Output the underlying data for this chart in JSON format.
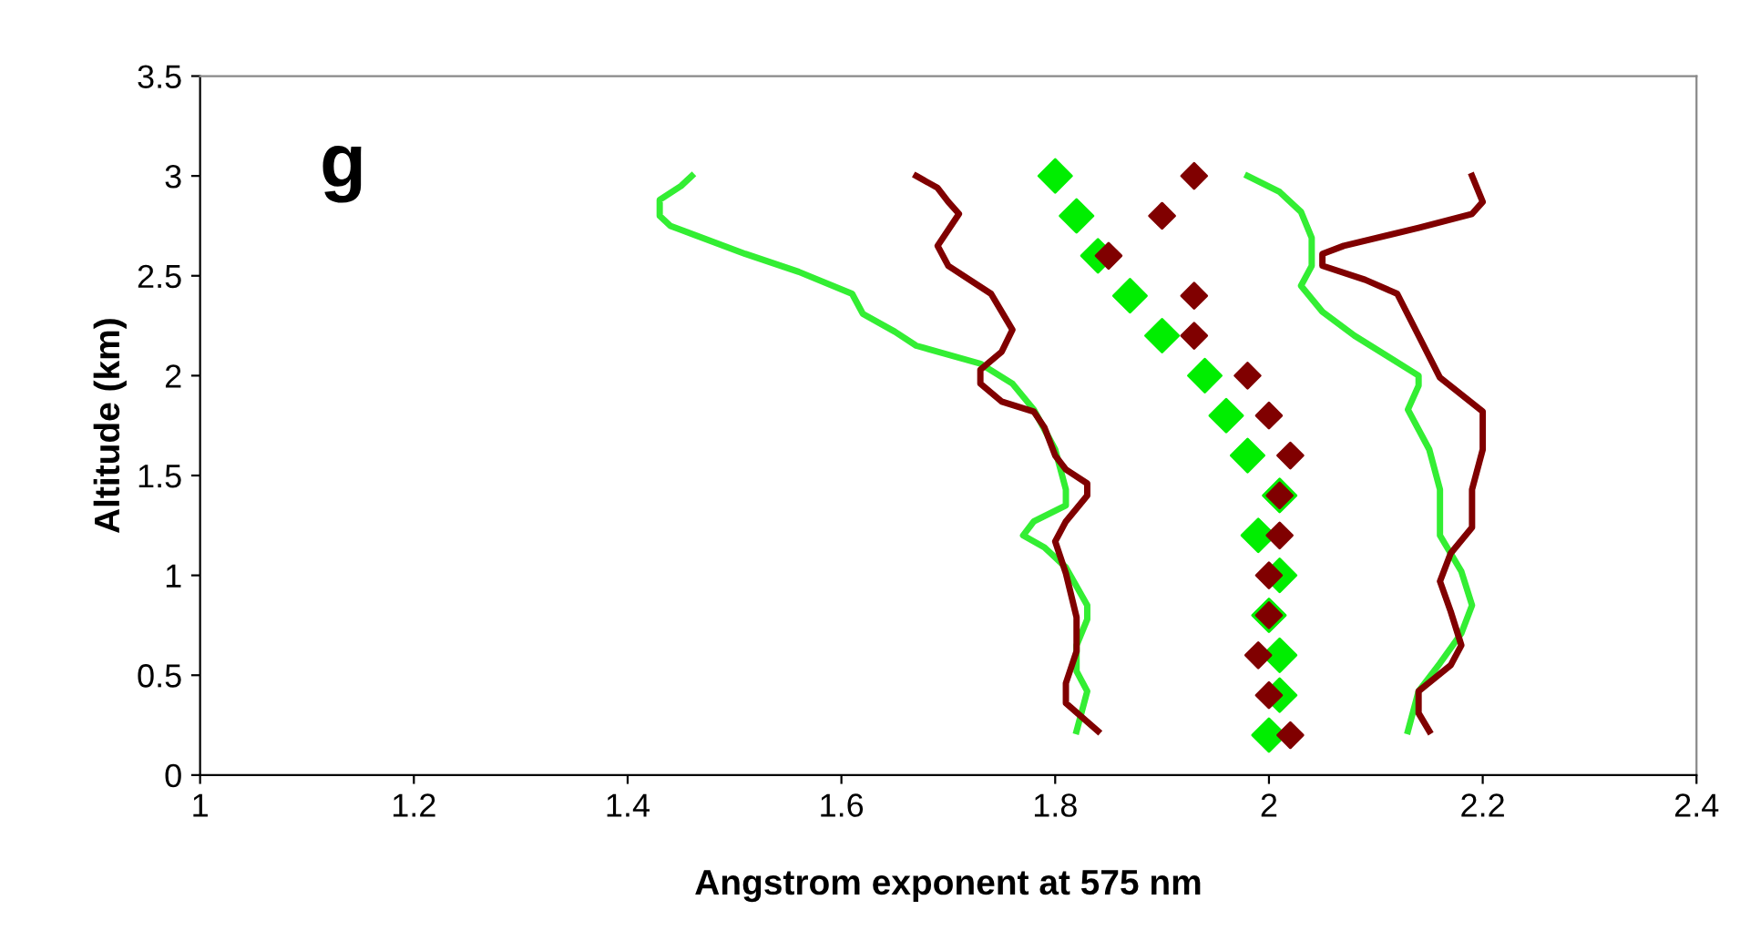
{
  "chart_data": {
    "type": "line",
    "xlabel": "Angstrom exponent at 575 nm",
    "ylabel": "Altitude (km)",
    "annotations": [
      "g"
    ],
    "xlim": [
      1,
      2.4
    ],
    "xticks": [
      1,
      1.2,
      1.4,
      1.6,
      1.8,
      2,
      2.2,
      2.4
    ],
    "ylim": [
      0,
      3.5
    ],
    "yticks": [
      0,
      0.5,
      1,
      1.5,
      2,
      2.5,
      3,
      3.5
    ],
    "grid": false,
    "legend": false,
    "line_style": "solid",
    "series": [
      {
        "color": "#33ee33",
        "x": [
          1.46,
          1.45,
          1.43,
          1.43,
          1.44,
          1.51,
          1.56,
          1.61,
          1.62,
          1.65,
          1.67,
          1.73,
          1.76,
          1.78,
          1.8,
          1.81,
          1.81,
          1.78,
          1.77,
          1.79,
          1.81,
          1.83,
          1.83,
          1.82,
          1.82,
          1.83,
          1.82
        ],
        "values": [
          3.0,
          2.95,
          2.88,
          2.8,
          2.75,
          2.61,
          2.52,
          2.41,
          2.31,
          2.22,
          2.15,
          2.06,
          1.96,
          1.83,
          1.63,
          1.43,
          1.35,
          1.27,
          1.2,
          1.14,
          1.04,
          0.85,
          0.78,
          0.65,
          0.52,
          0.42,
          0.22
        ]
      },
      {
        "color": "#800000",
        "x": [
          1.67,
          1.69,
          1.7,
          1.71,
          1.69,
          1.7,
          1.74,
          1.76,
          1.75,
          1.73,
          1.73,
          1.75,
          1.78,
          1.79,
          1.8,
          1.81,
          1.83,
          1.83,
          1.81,
          1.8,
          1.81,
          1.82,
          1.82,
          1.81,
          1.81,
          1.84
        ],
        "values": [
          3.0,
          2.94,
          2.87,
          2.81,
          2.65,
          2.55,
          2.41,
          2.23,
          2.12,
          2.03,
          1.96,
          1.87,
          1.82,
          1.74,
          1.6,
          1.53,
          1.46,
          1.4,
          1.27,
          1.17,
          1.01,
          0.79,
          0.62,
          0.46,
          0.36,
          0.22
        ]
      },
      {
        "color": "#33ee33",
        "x": [
          1.98,
          2.01,
          2.03,
          2.04,
          2.04,
          2.03,
          2.05,
          2.08,
          2.14,
          2.14,
          2.13,
          2.15,
          2.16,
          2.16,
          2.18,
          2.19,
          2.18,
          2.16,
          2.14,
          2.13
        ],
        "values": [
          3.0,
          2.92,
          2.82,
          2.69,
          2.55,
          2.45,
          2.32,
          2.2,
          2.0,
          1.95,
          1.83,
          1.63,
          1.43,
          1.2,
          1.02,
          0.85,
          0.71,
          0.56,
          0.42,
          0.22
        ]
      },
      {
        "color": "#800000",
        "x": [
          2.19,
          2.2,
          2.19,
          2.14,
          2.07,
          2.05,
          2.05,
          2.09,
          2.12,
          2.14,
          2.16,
          2.2,
          2.2,
          2.19,
          2.19,
          2.17,
          2.16,
          2.17,
          2.18,
          2.17,
          2.14,
          2.14,
          2.15
        ],
        "values": [
          3.0,
          2.87,
          2.81,
          2.74,
          2.65,
          2.61,
          2.55,
          2.48,
          2.41,
          2.2,
          1.99,
          1.82,
          1.63,
          1.43,
          1.24,
          1.11,
          0.97,
          0.82,
          0.65,
          0.55,
          0.42,
          0.31,
          0.22
        ]
      },
      {
        "type": "scatter",
        "marker": "diamond",
        "color": "#00ee00",
        "x": [
          1.8,
          1.82,
          1.84,
          1.87,
          1.9,
          1.94,
          1.96,
          1.98,
          2.01,
          1.99,
          2.01,
          2.0,
          2.01,
          2.01,
          2.0
        ],
        "values": [
          3.0,
          2.8,
          2.6,
          2.4,
          2.2,
          2.0,
          1.8,
          1.6,
          1.4,
          1.2,
          1.0,
          0.8,
          0.6,
          0.4,
          0.2
        ]
      },
      {
        "type": "scatter",
        "marker": "diamond",
        "color": "#800000",
        "x": [
          1.93,
          1.9,
          1.85,
          1.93,
          1.93,
          1.98,
          2.0,
          2.02,
          2.01,
          2.01,
          2.0,
          2.0,
          1.99,
          2.0,
          2.02
        ],
        "values": [
          3.0,
          2.8,
          2.6,
          2.4,
          2.2,
          2.0,
          1.8,
          1.6,
          1.4,
          1.2,
          1.0,
          0.8,
          0.6,
          0.4,
          0.2
        ]
      }
    ]
  }
}
